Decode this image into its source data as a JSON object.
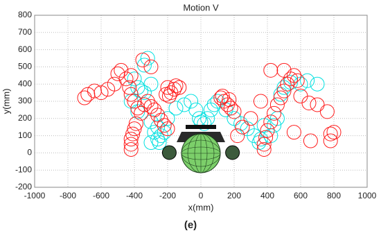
{
  "chart_data": {
    "type": "scatter",
    "title": "Motion V",
    "x_label": "x(mm)",
    "y_label": "y(mm)",
    "caption": "(e)",
    "xlim": [
      -1000,
      1000
    ],
    "xticks": [
      -1000,
      -800,
      -600,
      -400,
      -200,
      0,
      200,
      400,
      600,
      800,
      1000
    ],
    "ylim": [
      -200,
      800
    ],
    "yticks": [
      -200,
      -100,
      0,
      100,
      200,
      300,
      400,
      500,
      600,
      700,
      800
    ],
    "grid": true,
    "series": [
      {
        "color": "#00e0e0",
        "x": [
          -340,
          -320,
          -400,
          -380,
          -360,
          -340,
          -300,
          -420,
          -380,
          -300,
          -260,
          -280,
          -240,
          -260,
          -250,
          -300,
          -220,
          -200,
          -150,
          -100,
          -60,
          -30,
          -10,
          0,
          20,
          40,
          60,
          80,
          100,
          150,
          200,
          240,
          280,
          320,
          360,
          420,
          440,
          460,
          480,
          500,
          540,
          600,
          640,
          700,
          380,
          350
        ],
        "values": [
          510,
          550,
          430,
          380,
          360,
          350,
          400,
          300,
          240,
          180,
          150,
          120,
          100,
          80,
          60,
          60,
          120,
          200,
          260,
          280,
          300,
          250,
          200,
          180,
          170,
          200,
          250,
          280,
          300,
          250,
          200,
          170,
          140,
          100,
          80,
          100,
          160,
          200,
          340,
          380,
          410,
          400,
          420,
          400,
          160,
          60
        ]
      },
      {
        "color": "#ff1a1a",
        "x": [
          -700,
          -680,
          -640,
          -600,
          -560,
          -520,
          -500,
          -480,
          -450,
          -430,
          -420,
          -400,
          -380,
          -360,
          -340,
          -320,
          -300,
          -280,
          -260,
          -240,
          -220,
          -200,
          -300,
          -350,
          -420,
          -420,
          -420,
          -420,
          -410,
          -400,
          -390,
          -200,
          -190,
          -180,
          -160,
          -150,
          -130,
          -210,
          120,
          140,
          160,
          180,
          200,
          130,
          170,
          380,
          380,
          390,
          400,
          420,
          440,
          460,
          480,
          500,
          520,
          540,
          560,
          580,
          600,
          650,
          700,
          760,
          780,
          800,
          780,
          660,
          560,
          420,
          500,
          360,
          300,
          250,
          220
        ],
        "values": [
          320,
          340,
          360,
          350,
          370,
          400,
          460,
          480,
          430,
          380,
          340,
          300,
          260,
          230,
          280,
          300,
          270,
          250,
          220,
          190,
          160,
          140,
          500,
          540,
          450,
          20,
          50,
          80,
          110,
          140,
          170,
          380,
          330,
          350,
          370,
          390,
          380,
          340,
          320,
          300,
          280,
          260,
          240,
          330,
          310,
          20,
          50,
          90,
          130,
          180,
          230,
          280,
          320,
          360,
          400,
          430,
          450,
          420,
          330,
          290,
          280,
          240,
          110,
          120,
          70,
          70,
          120,
          480,
          480,
          300,
          200,
          150,
          100
        ]
      }
    ]
  }
}
